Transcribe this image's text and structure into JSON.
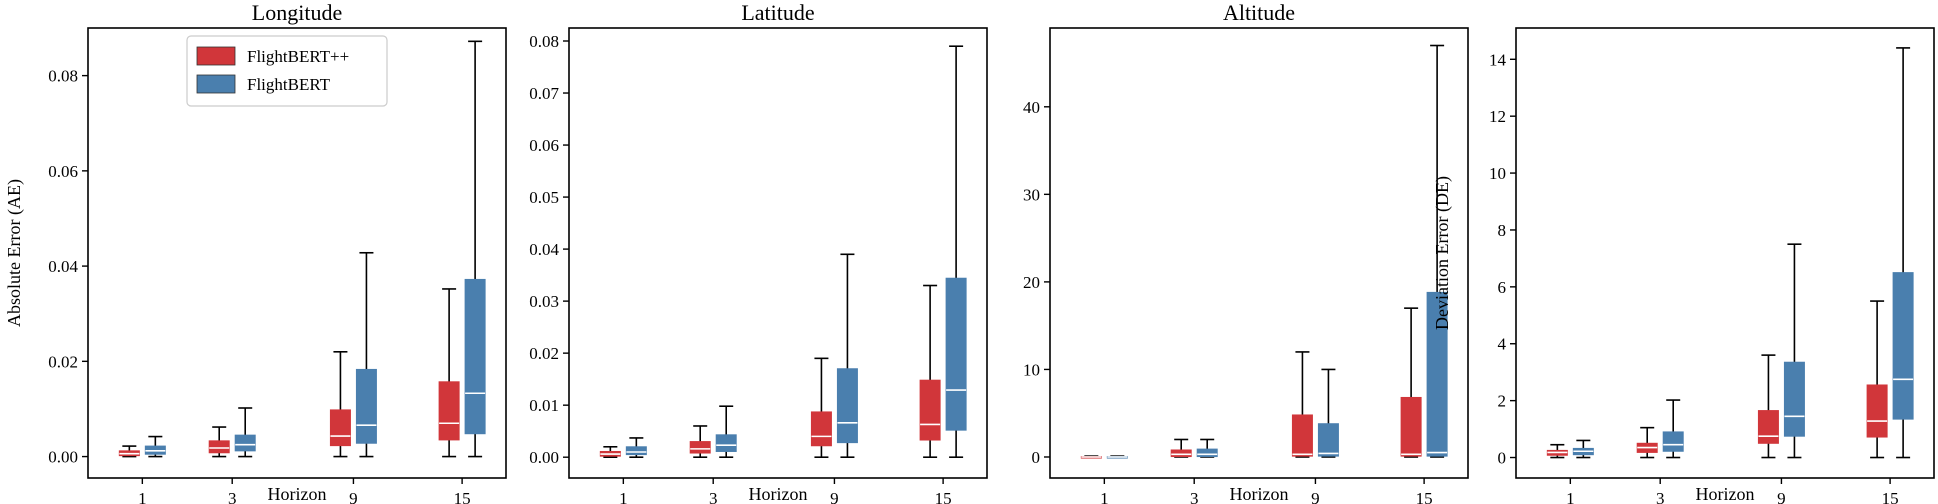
{
  "chart_data": [
    {
      "type": "box",
      "title": "Longitude",
      "xlabel": "Horizon",
      "ylabel": "Absolute Error (AE)",
      "categories": [
        "1",
        "3",
        "9",
        "15"
      ],
      "ylim": [
        -0.0045,
        0.09
      ],
      "yticks": [
        0.0,
        0.02,
        0.04,
        0.06,
        0.08
      ],
      "ytick_labels": [
        "0.00",
        "0.02",
        "0.04",
        "0.06",
        "0.08"
      ],
      "legend": [
        "FlightBERT++",
        "FlightBERT"
      ],
      "series": [
        {
          "name": "FlightBERT++",
          "color": "#d1363a",
          "median_color": "#ffffff",
          "boxes": [
            {
              "whislo": 0.0,
              "q1": 0.0002,
              "med": 0.0006,
              "q3": 0.0012,
              "whishi": 0.0022
            },
            {
              "whislo": 0.0,
              "q1": 0.0008,
              "med": 0.0018,
              "q3": 0.0033,
              "whishi": 0.0062
            },
            {
              "whislo": 0.0,
              "q1": 0.0023,
              "med": 0.0043,
              "q3": 0.0098,
              "whishi": 0.022
            },
            {
              "whislo": 0.0,
              "q1": 0.0035,
              "med": 0.007,
              "q3": 0.0157,
              "whishi": 0.0352
            }
          ]
        },
        {
          "name": "FlightBERT",
          "color": "#4a7fae",
          "median_color": "#ffffff",
          "boxes": [
            {
              "whislo": 0.0,
              "q1": 0.0005,
              "med": 0.0012,
              "q3": 0.0022,
              "whishi": 0.0042
            },
            {
              "whislo": 0.0,
              "q1": 0.0012,
              "med": 0.0025,
              "q3": 0.0045,
              "whishi": 0.0102
            },
            {
              "whislo": 0.0,
              "q1": 0.0028,
              "med": 0.0066,
              "q3": 0.0183,
              "whishi": 0.0428
            },
            {
              "whislo": 0.0,
              "q1": 0.0048,
              "med": 0.0133,
              "q3": 0.0372,
              "whishi": 0.0872
            }
          ]
        }
      ]
    },
    {
      "type": "box",
      "title": "Latitude",
      "xlabel": "Horizon",
      "ylabel": "",
      "categories": [
        "1",
        "3",
        "9",
        "15"
      ],
      "ylim": [
        -0.004,
        0.0825
      ],
      "yticks": [
        0.0,
        0.01,
        0.02,
        0.03,
        0.04,
        0.05,
        0.06,
        0.07,
        0.08
      ],
      "ytick_labels": [
        "0.00",
        "0.01",
        "0.02",
        "0.03",
        "0.04",
        "0.05",
        "0.06",
        "0.07",
        "0.08"
      ],
      "series": [
        {
          "name": "FlightBERT++",
          "color": "#d1363a",
          "median_color": "#ffffff",
          "boxes": [
            {
              "whislo": 0.0,
              "q1": 0.0002,
              "med": 0.0006,
              "q3": 0.0011,
              "whishi": 0.002
            },
            {
              "whislo": 0.0,
              "q1": 0.0008,
              "med": 0.0016,
              "q3": 0.003,
              "whishi": 0.006
            },
            {
              "whislo": 0.0,
              "q1": 0.0022,
              "med": 0.004,
              "q3": 0.0087,
              "whishi": 0.019
            },
            {
              "whislo": 0.0,
              "q1": 0.0033,
              "med": 0.0063,
              "q3": 0.0148,
              "whishi": 0.033
            }
          ]
        },
        {
          "name": "FlightBERT",
          "color": "#4a7fae",
          "median_color": "#ffffff",
          "boxes": [
            {
              "whislo": 0.0,
              "q1": 0.0005,
              "med": 0.001,
              "q3": 0.002,
              "whishi": 0.0037
            },
            {
              "whislo": 0.0,
              "q1": 0.0011,
              "med": 0.0023,
              "q3": 0.0043,
              "whishi": 0.0098
            },
            {
              "whislo": 0.0,
              "q1": 0.0028,
              "med": 0.0066,
              "q3": 0.017,
              "whishi": 0.039
            },
            {
              "whislo": 0.0,
              "q1": 0.0052,
              "med": 0.0129,
              "q3": 0.0344,
              "whishi": 0.079
            }
          ]
        }
      ]
    },
    {
      "type": "box",
      "title": "Altitude",
      "xlabel": "Horizon",
      "ylabel": "",
      "categories": [
        "1",
        "3",
        "9",
        "15"
      ],
      "ylim": [
        -2.4,
        49.0
      ],
      "yticks": [
        0,
        10,
        20,
        30,
        40
      ],
      "ytick_labels": [
        "0",
        "10",
        "20",
        "30",
        "40"
      ],
      "series": [
        {
          "name": "FlightBERT++",
          "color": "#d1363a",
          "median_color": "#ffffff",
          "boxes": [
            {
              "whislo": 0.0,
              "q1": 0.0,
              "med": 0.0,
              "q3": 0.05,
              "whishi": 0.1
            },
            {
              "whislo": 0.0,
              "q1": 0.05,
              "med": 0.3,
              "q3": 0.8,
              "whishi": 2.0
            },
            {
              "whislo": 0.0,
              "q1": 0.1,
              "med": 0.3,
              "q3": 4.8,
              "whishi": 12.0
            },
            {
              "whislo": 0.0,
              "q1": 0.1,
              "med": 0.3,
              "q3": 6.8,
              "whishi": 17.0
            }
          ]
        },
        {
          "name": "FlightBERT",
          "color": "#4a7fae",
          "median_color": "#ffffff",
          "boxes": [
            {
              "whislo": 0.0,
              "q1": 0.0,
              "med": 0.0,
              "q3": 0.05,
              "whishi": 0.1
            },
            {
              "whislo": 0.0,
              "q1": 0.05,
              "med": 0.3,
              "q3": 0.9,
              "whishi": 2.0
            },
            {
              "whislo": 0.0,
              "q1": 0.1,
              "med": 0.4,
              "q3": 3.8,
              "whishi": 10.0
            },
            {
              "whislo": 0.0,
              "q1": 0.1,
              "med": 0.5,
              "q3": 18.8,
              "whishi": 47.0
            }
          ]
        }
      ]
    },
    {
      "type": "box",
      "title": "",
      "xlabel": "Horizon",
      "ylabel": "Deviation Error (DE)",
      "categories": [
        "1",
        "3",
        "9",
        "15"
      ],
      "ylim": [
        -0.72,
        15.1
      ],
      "yticks": [
        0,
        2,
        4,
        6,
        8,
        10,
        12,
        14
      ],
      "ytick_labels": [
        "0",
        "2",
        "4",
        "6",
        "8",
        "10",
        "12",
        "14"
      ],
      "series": [
        {
          "name": "FlightBERT++",
          "color": "#d1363a",
          "median_color": "#ffffff",
          "boxes": [
            {
              "whislo": 0.0,
              "q1": 0.08,
              "med": 0.18,
              "q3": 0.25,
              "whishi": 0.45
            },
            {
              "whislo": 0.0,
              "q1": 0.18,
              "med": 0.35,
              "q3": 0.5,
              "whishi": 1.05
            },
            {
              "whislo": 0.0,
              "q1": 0.5,
              "med": 0.75,
              "q3": 1.65,
              "whishi": 3.6
            },
            {
              "whislo": 0.0,
              "q1": 0.72,
              "med": 1.28,
              "q3": 2.55,
              "whishi": 5.5
            }
          ]
        },
        {
          "name": "FlightBERT",
          "color": "#4a7fae",
          "median_color": "#ffffff",
          "boxes": [
            {
              "whislo": 0.0,
              "q1": 0.1,
              "med": 0.22,
              "q3": 0.32,
              "whishi": 0.6
            },
            {
              "whislo": 0.0,
              "q1": 0.22,
              "med": 0.45,
              "q3": 0.9,
              "whishi": 2.02
            },
            {
              "whislo": 0.0,
              "q1": 0.75,
              "med": 1.45,
              "q3": 3.35,
              "whishi": 7.5
            },
            {
              "whislo": 0.0,
              "q1": 1.35,
              "med": 2.75,
              "q3": 6.5,
              "whishi": 14.4
            }
          ]
        }
      ]
    }
  ]
}
